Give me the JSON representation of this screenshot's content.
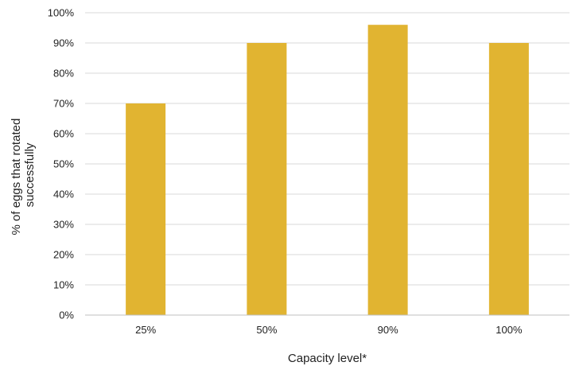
{
  "chart_data": {
    "type": "bar",
    "categories": [
      "25%",
      "50%",
      "90%",
      "100%"
    ],
    "series": [
      {
        "values": [
          70,
          90,
          96,
          90
        ],
        "color": "#E1B431"
      }
    ],
    "xlabel": "Capacity level*",
    "ylabel_lines": [
      "% of eggs that rotated",
      "successfully"
    ],
    "ylim": [
      0,
      100
    ],
    "yticks": [
      0,
      10,
      20,
      30,
      40,
      50,
      60,
      70,
      80,
      90,
      100
    ],
    "ytick_labels": [
      "0%",
      "10%",
      "20%",
      "30%",
      "40%",
      "50%",
      "60%",
      "70%",
      "80%",
      "90%",
      "100%"
    ],
    "grid": true,
    "legend": "none"
  }
}
